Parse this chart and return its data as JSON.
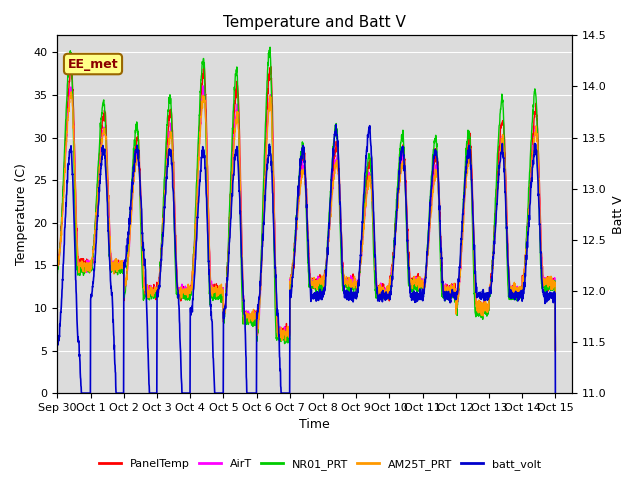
{
  "title": "Temperature and Batt V",
  "xlabel": "Time",
  "ylabel_left": "Temperature (C)",
  "ylabel_right": "Batt V",
  "annotation": "EE_met",
  "ylim_left": [
    0,
    42
  ],
  "ylim_right": [
    11.0,
    14.5
  ],
  "yticks_left": [
    0,
    5,
    10,
    15,
    20,
    25,
    30,
    35,
    40
  ],
  "yticks_right": [
    11.0,
    11.5,
    12.0,
    12.5,
    13.0,
    13.5,
    14.0,
    14.5
  ],
  "plot_bg_color": "#dcdcdc",
  "series": {
    "PanelTemp": {
      "color": "#ff0000",
      "lw": 1.0
    },
    "AirT": {
      "color": "#ff00ff",
      "lw": 1.0
    },
    "NR01_PRT": {
      "color": "#00cc00",
      "lw": 1.0
    },
    "AM25T_PRT": {
      "color": "#ff9900",
      "lw": 1.0
    },
    "batt_volt": {
      "color": "#0000cc",
      "lw": 1.2
    }
  },
  "xtick_labels": [
    "Sep 30",
    "Oct 1",
    "Oct 2",
    "Oct 3",
    "Oct 4",
    "Oct 5",
    "Oct 6",
    "Oct 7",
    "Oct 8",
    "Oct 9",
    "Oct 10",
    "Oct 11",
    "Oct 12",
    "Oct 13",
    "Oct 14",
    "Oct 15"
  ],
  "day_peaks": [
    38,
    33,
    30,
    33,
    38,
    36,
    38,
    28,
    29,
    27,
    29,
    28,
    30,
    32,
    33
  ],
  "day_mins": [
    15,
    15,
    12,
    12,
    12,
    9,
    7,
    13,
    13,
    12,
    13,
    12,
    10,
    12,
    13
  ],
  "batt_peaks": [
    13.5,
    13.5,
    13.5,
    13.5,
    13.5,
    13.5,
    13.5,
    13.5,
    13.7,
    13.7,
    13.5,
    13.5,
    13.5,
    13.5,
    13.5
  ],
  "batt_mins_day": [
    11.5,
    12.0,
    12.3,
    12.0,
    11.8,
    11.8,
    11.8,
    12.0,
    12.0,
    12.0,
    12.0,
    12.0,
    12.0,
    12.0,
    12.0
  ],
  "batt_nights": [
    9.0,
    9.0,
    8.5,
    8.5,
    8.5,
    6.5,
    8.5,
    12.3,
    12.3,
    12.2,
    12.3,
    12.2,
    12.2,
    12.2,
    12.2
  ],
  "title_fontsize": 11,
  "axis_fontsize": 9,
  "tick_fontsize": 8
}
